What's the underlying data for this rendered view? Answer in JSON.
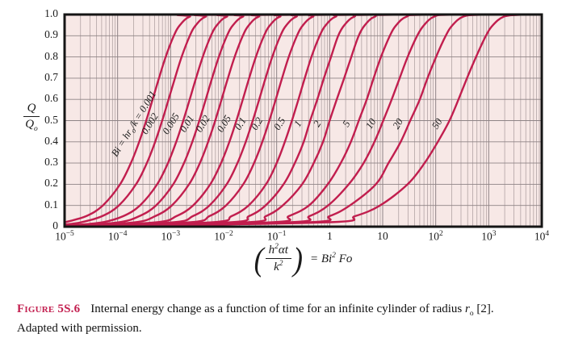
{
  "figure": {
    "label": "Figure 5S.6",
    "caption_html": "Internal energy change as a function of time for an infinite cylinder of radius <i>r</i><sub>o</sub> [2]. Adapted with permission."
  },
  "axes": {
    "y_title": {
      "num": "Q",
      "den_base": "Q",
      "den_sub": "o"
    },
    "x_formula": {
      "open": "(",
      "num_html": "h<sup>2</sup>αt",
      "den_html": "k<sup>2</sup>",
      "close": ")",
      "rhs_html": "= Bi<sup>2</sup> Fo"
    },
    "x_ticks": [
      {
        "html": "10<sup>−5</sup>",
        "log": -5
      },
      {
        "html": "10<sup>−4</sup>",
        "log": -4
      },
      {
        "html": "10<sup>−3</sup>",
        "log": -3
      },
      {
        "html": "10<sup>−2</sup>",
        "log": -2
      },
      {
        "html": "10<sup>−1</sup>",
        "log": -1
      },
      {
        "html": "1",
        "log": 0
      },
      {
        "html": "10",
        "log": 1
      },
      {
        "html": "10<sup>2</sup>",
        "log": 2
      },
      {
        "html": "10<sup>3</sup>",
        "log": 3
      },
      {
        "html": "10<sup>4</sup>",
        "log": 4
      }
    ],
    "y_ticks": [
      {
        "label": "0",
        "v": 0
      },
      {
        "label": "0.1",
        "v": 0.1
      },
      {
        "label": "0.2",
        "v": 0.2
      },
      {
        "label": "0.3",
        "v": 0.3
      },
      {
        "label": "0.4",
        "v": 0.4
      },
      {
        "label": "0.5",
        "v": 0.5
      },
      {
        "label": "0.6",
        "v": 0.6
      },
      {
        "label": "0.7",
        "v": 0.7
      },
      {
        "label": "0.8",
        "v": 0.8
      },
      {
        "label": "0.9",
        "v": 0.9
      },
      {
        "label": "1.0",
        "v": 1
      }
    ]
  },
  "colors": {
    "curve": "#c11e4e",
    "plot_bg": "#f7e8e6",
    "grid_minor": "#a89a9b",
    "grid_major": "#8f8486",
    "frame": "#151515",
    "label_text": "#1b1b1b",
    "caption_label": "#c32050"
  },
  "chart_data": {
    "type": "line",
    "title": "",
    "xlabel": "(h²αt/k²) = Bi² Fo",
    "ylabel": "Q/Qo",
    "x_scale": "log10",
    "xlim_log10": [
      -5,
      4
    ],
    "ylim": [
      0,
      1
    ],
    "y_grid_step": 0.1,
    "grid": true,
    "legend": "labels along curves",
    "points_format": "[log10(Bi^2*Fo), Q/Qo]",
    "series": [
      {
        "bi": "0.001",
        "label": "Bi = hr_{o}/k = 0.001",
        "points": [
          [
            -5,
            0.02
          ],
          [
            -4.591,
            0.05
          ],
          [
            -4.278,
            0.1
          ],
          [
            -3.953,
            0.2
          ],
          [
            -3.749,
            0.3
          ],
          [
            -3.593,
            0.4
          ],
          [
            -3.46,
            0.5
          ],
          [
            -3.339,
            0.6
          ],
          [
            -3.22,
            0.7
          ],
          [
            -3.094,
            0.8
          ],
          [
            -2.939,
            0.9
          ],
          [
            -2.825,
            0.95
          ],
          [
            -2.638,
            0.99
          ],
          [
            -2.3,
            0.999
          ],
          [
            4,
            1
          ]
        ]
      },
      {
        "bi": "0.002",
        "label": "0.002",
        "points": [
          [
            -5,
            0.01
          ],
          [
            -4.695,
            0.02
          ],
          [
            -4.29,
            0.05
          ],
          [
            -3.977,
            0.1
          ],
          [
            -3.652,
            0.2
          ],
          [
            -3.448,
            0.3
          ],
          [
            -3.292,
            0.4
          ],
          [
            -3.159,
            0.5
          ],
          [
            -3.038,
            0.6
          ],
          [
            -2.919,
            0.7
          ],
          [
            -2.793,
            0.8
          ],
          [
            -2.638,
            0.9
          ],
          [
            -2.524,
            0.95
          ],
          [
            -2.337,
            0.99
          ],
          [
            -2,
            0.999
          ],
          [
            4,
            1
          ]
        ]
      },
      {
        "bi": "0.005",
        "label": "0.005",
        "points": [
          [
            -5,
            0.004
          ],
          [
            -4.297,
            0.02
          ],
          [
            -3.892,
            0.05
          ],
          [
            -3.579,
            0.1
          ],
          [
            -3.254,
            0.2
          ],
          [
            -3.05,
            0.3
          ],
          [
            -2.894,
            0.4
          ],
          [
            -2.761,
            0.5
          ],
          [
            -2.64,
            0.6
          ],
          [
            -2.521,
            0.7
          ],
          [
            -2.395,
            0.8
          ],
          [
            -2.24,
            0.9
          ],
          [
            -2.126,
            0.95
          ],
          [
            -1.939,
            0.99
          ],
          [
            -1.6,
            0.999
          ],
          [
            4,
            1
          ]
        ]
      },
      {
        "bi": "0.01",
        "label": "0.01",
        "points": [
          [
            -5,
            0.002
          ],
          [
            -3.994,
            0.02
          ],
          [
            -3.589,
            0.05
          ],
          [
            -3.276,
            0.1
          ],
          [
            -2.951,
            0.2
          ],
          [
            -2.747,
            0.3
          ],
          [
            -2.591,
            0.4
          ],
          [
            -2.458,
            0.5
          ],
          [
            -2.337,
            0.6
          ],
          [
            -2.218,
            0.7
          ],
          [
            -2.092,
            0.8
          ],
          [
            -1.937,
            0.9
          ],
          [
            -1.823,
            0.95
          ],
          [
            -1.636,
            0.99
          ],
          [
            -1.3,
            0.999
          ],
          [
            4,
            1
          ]
        ]
      },
      {
        "bi": "0.02",
        "label": "0.02",
        "points": [
          [
            -5,
            0.001
          ],
          [
            -3.695,
            0.02
          ],
          [
            -3.29,
            0.05
          ],
          [
            -2.977,
            0.1
          ],
          [
            -2.652,
            0.2
          ],
          [
            -2.448,
            0.3
          ],
          [
            -2.292,
            0.4
          ],
          [
            -2.159,
            0.5
          ],
          [
            -2.038,
            0.6
          ],
          [
            -1.919,
            0.7
          ],
          [
            -1.793,
            0.8
          ],
          [
            -1.638,
            0.9
          ],
          [
            -1.524,
            0.95
          ],
          [
            -1.337,
            0.99
          ],
          [
            -1,
            0.999
          ],
          [
            4,
            1
          ]
        ]
      },
      {
        "bi": "0.05",
        "label": "0.05",
        "points": [
          [
            -5,
            0.0005
          ],
          [
            -3.295,
            0.02
          ],
          [
            -2.89,
            0.05
          ],
          [
            -2.577,
            0.1
          ],
          [
            -2.252,
            0.2
          ],
          [
            -2.048,
            0.3
          ],
          [
            -1.892,
            0.4
          ],
          [
            -1.759,
            0.5
          ],
          [
            -1.638,
            0.6
          ],
          [
            -1.519,
            0.7
          ],
          [
            -1.393,
            0.8
          ],
          [
            -1.238,
            0.9
          ],
          [
            -1.124,
            0.95
          ],
          [
            -0.937,
            0.99
          ],
          [
            -0.6,
            0.999
          ],
          [
            4,
            1
          ]
        ]
      },
      {
        "bi": "0.1",
        "label": "0.1",
        "points": [
          [
            -5,
            0.0002
          ],
          [
            -2.985,
            0.02
          ],
          [
            -2.58,
            0.05
          ],
          [
            -2.268,
            0.1
          ],
          [
            -1.942,
            0.2
          ],
          [
            -1.739,
            0.3
          ],
          [
            -1.583,
            0.4
          ],
          [
            -1.45,
            0.5
          ],
          [
            -1.329,
            0.6
          ],
          [
            -1.21,
            0.7
          ],
          [
            -1.084,
            0.8
          ],
          [
            -0.929,
            0.9
          ],
          [
            -0.815,
            0.95
          ],
          [
            -0.628,
            0.99
          ],
          [
            -0.3,
            0.999
          ],
          [
            4,
            1
          ]
        ]
      },
      {
        "bi": "0.2",
        "label": "0.2",
        "points": [
          [
            -5,
            0.0001
          ],
          [
            -2.673,
            0.02
          ],
          [
            -2.268,
            0.05
          ],
          [
            -1.956,
            0.1
          ],
          [
            -1.63,
            0.2
          ],
          [
            -1.426,
            0.3
          ],
          [
            -1.27,
            0.4
          ],
          [
            -1.138,
            0.5
          ],
          [
            -1.017,
            0.6
          ],
          [
            -0.898,
            0.7
          ],
          [
            -0.772,
            0.8
          ],
          [
            -0.617,
            0.9
          ],
          [
            -0.503,
            0.95
          ],
          [
            -0.315,
            0.99
          ],
          [
            0,
            0.999
          ],
          [
            4,
            1
          ]
        ]
      },
      {
        "bi": "0.5",
        "label": "0.5",
        "points": [
          [
            -5,
            0.0001
          ],
          [
            -2.26,
            0.02
          ],
          [
            -1.85,
            0.05
          ],
          [
            -1.53,
            0.1
          ],
          [
            -1.2,
            0.2
          ],
          [
            -1,
            0.3
          ],
          [
            -0.845,
            0.4
          ],
          [
            -0.711,
            0.5
          ],
          [
            -0.589,
            0.6
          ],
          [
            -0.47,
            0.7
          ],
          [
            -0.344,
            0.8
          ],
          [
            -0.188,
            0.9
          ],
          [
            -0.073,
            0.95
          ],
          [
            0.114,
            0.99
          ],
          [
            0.45,
            0.999
          ],
          [
            4,
            1
          ]
        ]
      },
      {
        "bi": "1",
        "label": "1",
        "points": [
          [
            -5,
            0.0001
          ],
          [
            -1.92,
            0.02
          ],
          [
            -1.52,
            0.05
          ],
          [
            -1.21,
            0.1
          ],
          [
            -0.87,
            0.2
          ],
          [
            -0.657,
            0.3
          ],
          [
            -0.49,
            0.4
          ],
          [
            -0.367,
            0.5
          ],
          [
            -0.233,
            0.6
          ],
          [
            -0.108,
            0.7
          ],
          [
            0.025,
            0.8
          ],
          [
            0.161,
            0.9
          ],
          [
            0.277,
            0.95
          ],
          [
            0.464,
            0.99
          ],
          [
            0.8,
            0.999
          ],
          [
            4,
            1
          ]
        ]
      },
      {
        "bi": "2",
        "label": "2",
        "points": [
          [
            -5,
            0.0001
          ],
          [
            -1.6,
            0.02
          ],
          [
            -1.2,
            0.05
          ],
          [
            -0.886,
            0.1
          ],
          [
            -0.52,
            0.2
          ],
          [
            -0.3,
            0.3
          ],
          [
            -0.125,
            0.4
          ],
          [
            0,
            0.5
          ],
          [
            0.134,
            0.6
          ],
          [
            0.274,
            0.7
          ],
          [
            0.407,
            0.8
          ],
          [
            0.547,
            0.9
          ],
          [
            0.664,
            0.95
          ],
          [
            0.853,
            0.99
          ],
          [
            1.2,
            0.999
          ],
          [
            4,
            1
          ]
        ]
      },
      {
        "bi": "5",
        "label": "5",
        "points": [
          [
            -5,
            0.0001
          ],
          [
            -1.15,
            0.02
          ],
          [
            -0.77,
            0.05
          ],
          [
            -0.39,
            0.1
          ],
          [
            -0.036,
            0.2
          ],
          [
            0.21,
            0.3
          ],
          [
            0.4,
            0.4
          ],
          [
            0.55,
            0.5
          ],
          [
            0.7,
            0.6
          ],
          [
            0.829,
            0.7
          ],
          [
            0.968,
            0.8
          ],
          [
            1.136,
            0.9
          ],
          [
            1.256,
            0.95
          ],
          [
            1.45,
            0.99
          ],
          [
            1.8,
            0.999
          ],
          [
            4,
            1
          ]
        ]
      },
      {
        "bi": "10",
        "label": "10",
        "points": [
          [
            -5,
            0.0001
          ],
          [
            -0.82,
            0.02
          ],
          [
            -0.38,
            0.05
          ],
          [
            -0.03,
            0.1
          ],
          [
            0.36,
            0.2
          ],
          [
            0.64,
            0.3
          ],
          [
            0.845,
            0.4
          ],
          [
            1.01,
            0.5
          ],
          [
            1.17,
            0.6
          ],
          [
            1.32,
            0.7
          ],
          [
            1.47,
            0.8
          ],
          [
            1.65,
            0.9
          ],
          [
            1.78,
            0.95
          ],
          [
            1.97,
            0.99
          ],
          [
            2.3,
            0.999
          ],
          [
            4,
            1
          ]
        ]
      },
      {
        "bi": "20",
        "label": "20",
        "points": [
          [
            -5,
            0.0001
          ],
          [
            -0.48,
            0.02
          ],
          [
            0,
            0.05
          ],
          [
            0.38,
            0.1
          ],
          [
            0.87,
            0.2
          ],
          [
            1.11,
            0.3
          ],
          [
            1.34,
            0.4
          ],
          [
            1.52,
            0.5
          ],
          [
            1.7,
            0.6
          ],
          [
            1.845,
            0.7
          ],
          [
            2.006,
            0.8
          ],
          [
            2.189,
            0.9
          ],
          [
            2.317,
            0.95
          ],
          [
            2.519,
            0.99
          ],
          [
            2.85,
            0.999
          ],
          [
            4,
            1
          ]
        ]
      },
      {
        "bi": "50",
        "label": "50",
        "points": [
          [
            -5,
            0.0001
          ],
          [
            -0.1,
            0.02
          ],
          [
            0.48,
            0.05
          ],
          [
            0.95,
            0.1
          ],
          [
            1.47,
            0.2
          ],
          [
            1.79,
            0.3
          ],
          [
            2.04,
            0.4
          ],
          [
            2.26,
            0.5
          ],
          [
            2.43,
            0.6
          ],
          [
            2.59,
            0.7
          ],
          [
            2.76,
            0.8
          ],
          [
            2.948,
            0.9
          ],
          [
            3.079,
            0.95
          ],
          [
            3.284,
            0.99
          ],
          [
            3.6,
            0.999
          ],
          [
            4,
            1
          ]
        ]
      }
    ]
  }
}
